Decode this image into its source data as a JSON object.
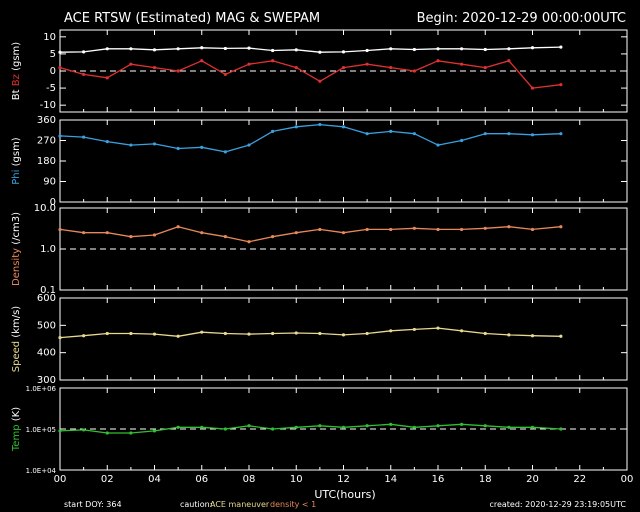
{
  "header": {
    "title": "ACE RTSW (Estimated) MAG & SWEPAM",
    "begin": "Begin: 2020-12-29 00:00:00UTC"
  },
  "footer": {
    "start_doy": "start DOY: 364",
    "caution_prefix": "caution:",
    "caution_maneuver": "ACE maneuver",
    "caution_density": "density < 1",
    "created": "created: 2020-12-29 23:19:05UTC"
  },
  "colors": {
    "background": "#000000",
    "axes": "#ffffff",
    "bt": "#ffffff",
    "bz": "#e03030",
    "phi": "#3aa0e0",
    "density": "#e8885a",
    "speed": "#e8d890",
    "temp": "#30c030"
  },
  "chart_data": [
    {
      "type": "scatter",
      "title": "Bt Bz",
      "ylabel": "(gsm)",
      "ylim": [
        -12,
        12
      ],
      "yticks": [
        "10",
        "5",
        "0",
        "-5",
        "-10"
      ],
      "ytick_values": [
        10,
        5,
        0,
        -5,
        -10
      ],
      "reference_line": 0,
      "x": [
        0,
        1,
        2,
        3,
        4,
        5,
        6,
        7,
        8,
        9,
        10,
        11,
        12,
        13,
        14,
        15,
        16,
        17,
        18,
        19,
        20,
        21.2
      ],
      "series": [
        {
          "name": "Bt",
          "values": [
            5.5,
            5.6,
            6.5,
            6.5,
            6.2,
            6.5,
            6.8,
            6.6,
            6.7,
            6.0,
            6.2,
            5.5,
            5.6,
            6.0,
            6.5,
            6.3,
            6.5,
            6.5,
            6.3,
            6.5,
            6.8,
            7.0
          ]
        },
        {
          "name": "Bz",
          "values": [
            1,
            -1,
            -2,
            2,
            1,
            0,
            3,
            -1,
            2,
            3,
            1,
            -3,
            1,
            2,
            1,
            0,
            3,
            2,
            1,
            3,
            -5,
            -4
          ]
        }
      ]
    },
    {
      "type": "scatter",
      "title": "Phi",
      "ylabel": "(gsm)",
      "ylim": [
        0,
        360
      ],
      "yticks": [
        "360",
        "270",
        "180",
        "90",
        "0"
      ],
      "ytick_values": [
        360,
        270,
        180,
        90,
        0
      ],
      "x": [
        0,
        1,
        2,
        3,
        4,
        5,
        6,
        7,
        8,
        9,
        10,
        11,
        12,
        13,
        14,
        15,
        16,
        17,
        18,
        19,
        20,
        21.2
      ],
      "series": [
        {
          "name": "Phi",
          "values": [
            290,
            285,
            265,
            250,
            255,
            235,
            240,
            220,
            250,
            310,
            330,
            340,
            330,
            300,
            310,
            300,
            250,
            270,
            300,
            300,
            295,
            300
          ]
        }
      ]
    },
    {
      "type": "scatter",
      "title": "Density",
      "ylabel": "(/cm3)",
      "ylim": [
        0.1,
        10
      ],
      "log_scale": true,
      "yticks": [
        "10.0",
        "1.0",
        "0.1"
      ],
      "ytick_values": [
        10,
        1,
        0.1
      ],
      "reference_line": 1,
      "x": [
        0,
        1,
        2,
        3,
        4,
        5,
        6,
        7,
        8,
        9,
        10,
        11,
        12,
        13,
        14,
        15,
        16,
        17,
        18,
        19,
        20,
        21.2
      ],
      "series": [
        {
          "name": "Density",
          "values": [
            3.0,
            2.5,
            2.5,
            2.0,
            2.2,
            3.5,
            2.5,
            2.0,
            1.5,
            2.0,
            2.5,
            3.0,
            2.5,
            3.0,
            3.0,
            3.2,
            3.0,
            3.0,
            3.2,
            3.5,
            3.0,
            3.5
          ]
        }
      ]
    },
    {
      "type": "scatter",
      "title": "Speed",
      "ylabel": "(km/s)",
      "ylim": [
        300,
        600
      ],
      "yticks": [
        "600",
        "500",
        "400",
        "300"
      ],
      "ytick_values": [
        600,
        500,
        400,
        300
      ],
      "x": [
        0,
        1,
        2,
        3,
        4,
        5,
        6,
        7,
        8,
        9,
        10,
        11,
        12,
        13,
        14,
        15,
        16,
        17,
        18,
        19,
        20,
        21.2
      ],
      "series": [
        {
          "name": "Speed",
          "values": [
            455,
            462,
            470,
            470,
            468,
            460,
            475,
            470,
            468,
            470,
            472,
            470,
            465,
            470,
            480,
            485,
            490,
            480,
            470,
            465,
            462,
            460
          ]
        }
      ]
    },
    {
      "type": "scatter",
      "title": "Temp",
      "ylabel": "(K)",
      "ylim": [
        10000,
        1000000
      ],
      "log_scale": true,
      "yticks": [
        "1.0E+06",
        "1.0E+05",
        "1.0E+04"
      ],
      "ytick_values": [
        1000000,
        100000,
        10000
      ],
      "reference_line": 100000,
      "xlabel": "UTC(hours)",
      "xticks": [
        "00",
        "02",
        "04",
        "06",
        "08",
        "10",
        "12",
        "14",
        "16",
        "18",
        "20",
        "22",
        "00"
      ],
      "xlim": [
        0,
        24
      ],
      "x": [
        0,
        1,
        2,
        3,
        4,
        5,
        6,
        7,
        8,
        9,
        10,
        11,
        12,
        13,
        14,
        15,
        16,
        17,
        18,
        19,
        20,
        21.2
      ],
      "series": [
        {
          "name": "Temp",
          "values": [
            90000,
            95000,
            80000,
            80000,
            90000,
            110000,
            110000,
            100000,
            120000,
            100000,
            110000,
            120000,
            110000,
            120000,
            130000,
            110000,
            120000,
            130000,
            120000,
            110000,
            110000,
            100000
          ]
        }
      ]
    }
  ]
}
